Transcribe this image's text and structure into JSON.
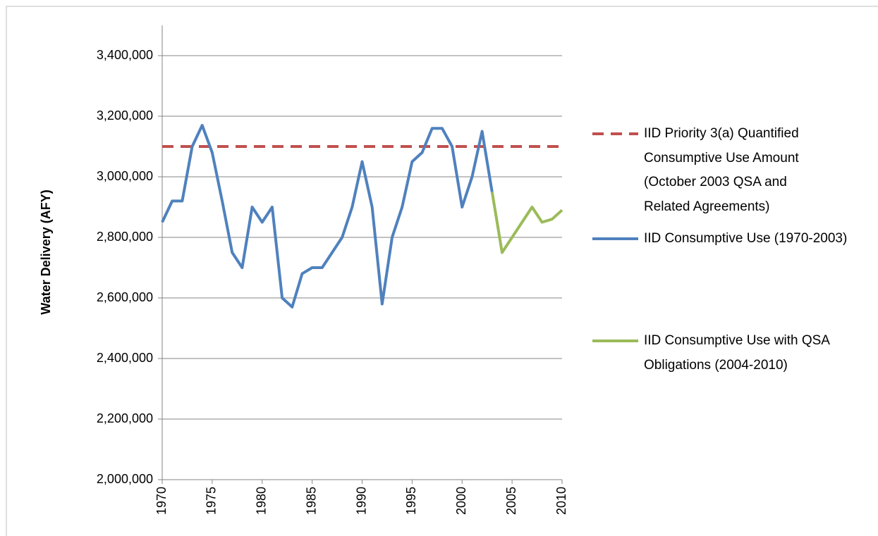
{
  "chart_data": {
    "type": "line",
    "ylabel": "Water Delivery (AFY)",
    "x": [
      1970,
      1971,
      1972,
      1973,
      1974,
      1975,
      1976,
      1977,
      1978,
      1979,
      1980,
      1981,
      1982,
      1983,
      1984,
      1985,
      1986,
      1987,
      1988,
      1989,
      1990,
      1991,
      1992,
      1993,
      1994,
      1995,
      1996,
      1997,
      1998,
      1999,
      2000,
      2001,
      2002,
      2003,
      2004,
      2005,
      2006,
      2007,
      2008,
      2009,
      2010
    ],
    "xlim": [
      1970,
      2010
    ],
    "xticks": [
      1970,
      1975,
      1980,
      1985,
      1990,
      1995,
      2000,
      2005,
      2010
    ],
    "ylim": [
      2000000,
      3500000
    ],
    "yticks": [
      {
        "value": 2000000,
        "label": "2,000,000"
      },
      {
        "value": 2200000,
        "label": "2,200,000"
      },
      {
        "value": 2400000,
        "label": "2,400,000"
      },
      {
        "value": 2600000,
        "label": "2,600,000"
      },
      {
        "value": 2800000,
        "label": "2,800,000"
      },
      {
        "value": 3000000,
        "label": "3,000,000"
      },
      {
        "value": 3200000,
        "label": "3,200,000"
      },
      {
        "value": 3400000,
        "label": "3,400,000"
      }
    ],
    "grid": true,
    "legend": "right",
    "series": [
      {
        "name": "IID Priority 3(a) Quantified Consumptive Use Amount (October 2003 QSA and Related Agreements)",
        "color": "#c0504d",
        "dashed": true,
        "values": [
          3100000,
          3100000,
          3100000,
          3100000,
          3100000,
          3100000,
          3100000,
          3100000,
          3100000,
          3100000,
          3100000,
          3100000,
          3100000,
          3100000,
          3100000,
          3100000,
          3100000,
          3100000,
          3100000,
          3100000,
          3100000,
          3100000,
          3100000,
          3100000,
          3100000,
          3100000,
          3100000,
          3100000,
          3100000,
          3100000,
          3100000,
          3100000,
          3100000,
          3100000,
          3100000,
          3100000,
          3100000,
          3100000,
          3100000,
          3100000,
          3100000
        ]
      },
      {
        "name": "IID Consumptive Use (1970-2003)",
        "color": "#4f81bd",
        "values": [
          2850000,
          2920000,
          2920000,
          3100000,
          3170000,
          3080000,
          2920000,
          2750000,
          2700000,
          2900000,
          2850000,
          2900000,
          2600000,
          2570000,
          2680000,
          2700000,
          2700000,
          2750000,
          2800000,
          2900000,
          3050000,
          2900000,
          2580000,
          2800000,
          2900000,
          3050000,
          3080000,
          3160000,
          3160000,
          3100000,
          2900000,
          3000000,
          3150000,
          2950000,
          null,
          null,
          null,
          null,
          null,
          null,
          null
        ]
      },
      {
        "name": "IID Consumptive Use with QSA Obligations (2004-2010)",
        "color": "#9bbb59",
        "values": [
          null,
          null,
          null,
          null,
          null,
          null,
          null,
          null,
          null,
          null,
          null,
          null,
          null,
          null,
          null,
          null,
          null,
          null,
          null,
          null,
          null,
          null,
          null,
          null,
          null,
          null,
          null,
          null,
          null,
          null,
          null,
          null,
          null,
          2950000,
          2750000,
          2800000,
          2850000,
          2900000,
          2850000,
          2860000,
          2890000
        ]
      }
    ]
  }
}
